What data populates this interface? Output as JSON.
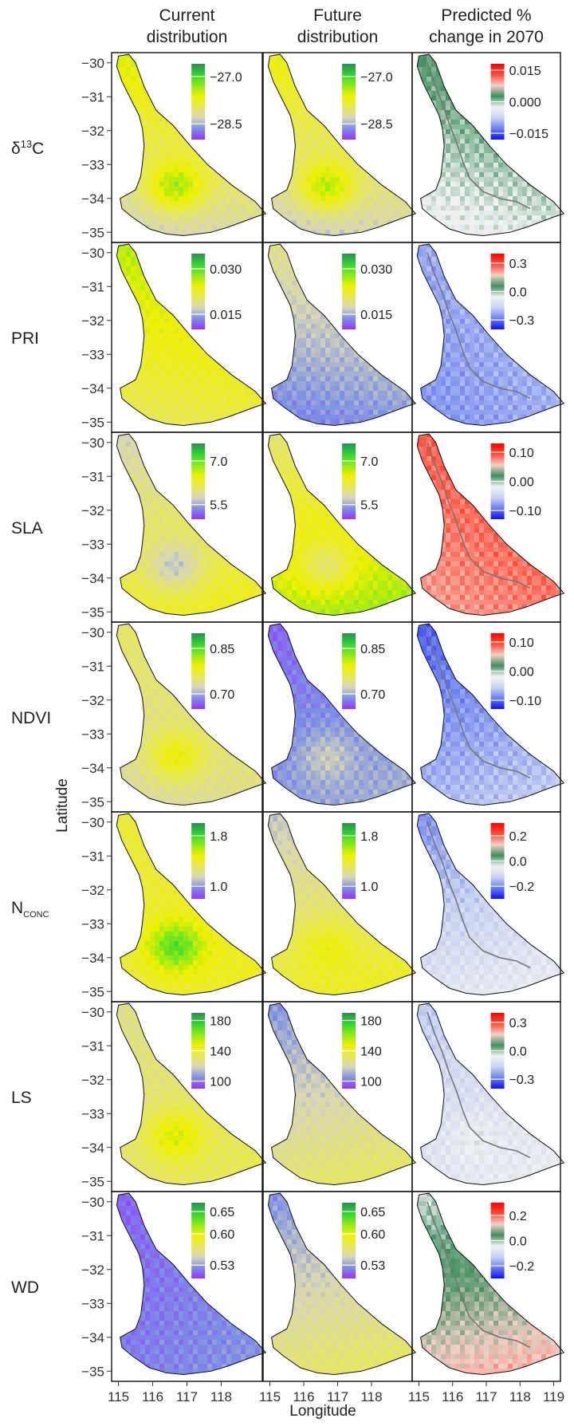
{
  "chart_data": {
    "type": "heatmap",
    "column_titles": [
      "Current\ndistribution",
      "Future\ndistribution",
      "Predicted %\nchange in 2070"
    ],
    "xlabel": "Longitude",
    "ylabel": "Latitude",
    "xlim": [
      114.8,
      119.2
    ],
    "ylim": [
      -35.3,
      -29.7
    ],
    "x_ticks": [
      "115",
      "116",
      "117",
      "118",
      "119"
    ],
    "y_ticks": [
      "−30",
      "−31",
      "−32",
      "−33",
      "−34",
      "−35"
    ],
    "panel_x_ticks": [
      [
        "115",
        "116",
        "117",
        "118"
      ],
      [
        "115",
        "116",
        "117",
        "118"
      ],
      [
        "115",
        "116",
        "117",
        "118",
        "119"
      ]
    ],
    "palettes": {
      "trait": [
        "#9b30ff",
        "#7b8fe6",
        "#d8d6b8",
        "#e8e85a",
        "#f0f000",
        "#8cea1a",
        "#2fd62f",
        "#2e8b57"
      ],
      "change": [
        "#1010ff",
        "#6a7ef0",
        "#c9d3f0",
        "#f2f2f2",
        "#3f8f5f",
        "#f4d0c8",
        "#ff4d3a",
        "#ff0000"
      ]
    },
    "rows": [
      {
        "label": "δ",
        "label_sup": "13",
        "label_rest": "C",
        "current": {
          "ticks": [
            "−27.0",
            "−28.5"
          ],
          "range": [
            -29.0,
            -26.6
          ],
          "v_base": 0.45,
          "v_lat": 0.35,
          "v_blob": 0.3
        },
        "future": {
          "ticks": [
            "−27.0",
            "−28.5"
          ],
          "range": [
            -29.0,
            -26.6
          ],
          "v_base": 0.42,
          "v_lat": 0.32,
          "v_blob": 0.3
        },
        "change": {
          "ticks": [
            "0.015",
            "0.000",
            "−0.015"
          ],
          "range": [
            -0.018,
            0.018
          ],
          "v_base": 0.5,
          "v_lat": 0.18,
          "v_blob": 0.0
        }
      },
      {
        "label": "PRI",
        "current": {
          "ticks": [
            "0.030",
            "0.015"
          ],
          "range": [
            0.01,
            0.035
          ],
          "v_base": 0.55,
          "v_lat": 0.25,
          "v_blob": 0.0
        },
        "future": {
          "ticks": [
            "0.030",
            "0.015"
          ],
          "range": [
            0.01,
            0.035
          ],
          "v_base": 0.25,
          "v_lat": 0.25,
          "v_blob": 0.0
        },
        "change": {
          "ticks": [
            "0.3",
            "0.0",
            "−0.3"
          ],
          "range": [
            -0.4,
            0.4
          ],
          "v_base": 0.22,
          "v_lat": 0.04,
          "v_blob": 0.0
        }
      },
      {
        "label": "SLA",
        "current": {
          "ticks": [
            "7.0",
            "5.5"
          ],
          "range": [
            5.0,
            7.6
          ],
          "v_base": 0.42,
          "v_lat": -0.22,
          "v_blob": -0.2
        },
        "future": {
          "ticks": [
            "7.0",
            "5.5"
          ],
          "range": [
            5.0,
            7.6
          ],
          "v_base": 0.55,
          "v_lat": -0.28,
          "v_blob": -0.2
        },
        "change": {
          "ticks": [
            "0.10",
            "0.00",
            "−0.10"
          ],
          "range": [
            -0.13,
            0.13
          ],
          "v_base": 0.82,
          "v_lat": 0.08,
          "v_blob": 0.0
        }
      },
      {
        "label": "NDVI",
        "current": {
          "ticks": [
            "0.85",
            "0.70"
          ],
          "range": [
            0.65,
            0.9
          ],
          "v_base": 0.38,
          "v_lat": 0.1,
          "v_blob": 0.2
        },
        "future": {
          "ticks": [
            "0.85",
            "0.70"
          ],
          "range": [
            0.65,
            0.9
          ],
          "v_base": 0.15,
          "v_lat": -0.1,
          "v_blob": 0.1
        },
        "change": {
          "ticks": [
            "0.10",
            "0.00",
            "−0.10"
          ],
          "range": [
            -0.13,
            0.13
          ],
          "v_base": 0.2,
          "v_lat": -0.15,
          "v_blob": 0.0
        }
      },
      {
        "label": "N",
        "label_sub": "CONC",
        "current": {
          "ticks": [
            "1.8",
            "1.0"
          ],
          "range": [
            0.8,
            2.0
          ],
          "v_base": 0.5,
          "v_lat": 0.0,
          "v_blob": 0.3
        },
        "future": {
          "ticks": [
            "1.8",
            "1.0"
          ],
          "range": [
            0.8,
            2.0
          ],
          "v_base": 0.4,
          "v_lat": -0.25,
          "v_blob": 0.1
        },
        "change": {
          "ticks": [
            "0.2",
            "0.0",
            "−0.2"
          ],
          "range": [
            -0.3,
            0.3
          ],
          "v_base": 0.3,
          "v_lat": -0.2,
          "v_blob": 0.0
        }
      },
      {
        "label": "LS",
        "current": {
          "ticks": [
            "180",
            "140",
            "100"
          ],
          "range": [
            90,
            190
          ],
          "v_base": 0.4,
          "v_lat": -0.05,
          "v_blob": 0.2
        },
        "future": {
          "ticks": [
            "180",
            "140",
            "100"
          ],
          "range": [
            90,
            190
          ],
          "v_base": 0.3,
          "v_lat": -0.25,
          "v_blob": 0.0
        },
        "change": {
          "ticks": [
            "0.3",
            "0.0",
            "−0.3"
          ],
          "range": [
            -0.4,
            0.4
          ],
          "v_base": 0.35,
          "v_lat": -0.1,
          "v_blob": 0.05
        }
      },
      {
        "label": "WD",
        "current": {
          "ticks": [
            "0.65",
            "0.60",
            "0.53"
          ],
          "range": [
            0.5,
            0.67
          ],
          "v_base": 0.12,
          "v_lat": -0.04,
          "v_blob": 0.0
        },
        "future": {
          "ticks": [
            "0.65",
            "0.60",
            "0.53"
          ],
          "range": [
            0.5,
            0.67
          ],
          "v_base": 0.3,
          "v_lat": -0.25,
          "v_blob": 0.0
        },
        "change": {
          "ticks": [
            "0.2",
            "0.0",
            "−0.2"
          ],
          "range": [
            -0.3,
            0.3
          ],
          "v_base": 0.62,
          "v_lat": -0.28,
          "v_blob": 0.0
        }
      }
    ]
  }
}
